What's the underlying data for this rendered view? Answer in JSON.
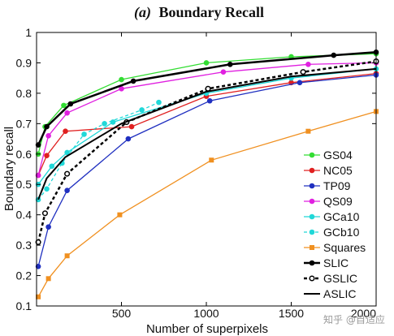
{
  "chart_data": {
    "type": "line",
    "title": "(a) Boundary Recall",
    "title_prefix": "(a)",
    "title_main": "Boundary Recall",
    "xlabel": "Number of superpixels",
    "ylabel": "Boundary recall",
    "xlim": [
      0,
      2000
    ],
    "ylim": [
      0.1,
      1.0
    ],
    "xticks": [
      500,
      1000,
      1500,
      2000
    ],
    "xtick_labels": [
      "500",
      "1000",
      "1500",
      "2000"
    ],
    "yticks": [
      0.1,
      0.2,
      0.3,
      0.4,
      0.5,
      0.6,
      0.7,
      0.8,
      0.9,
      1.0
    ],
    "ytick_labels": [
      "0.1",
      "0.2",
      "0.3",
      "0.4",
      "0.5",
      "0.6",
      "0.7",
      "0.8",
      "0.9",
      "1"
    ],
    "grid": false,
    "legend_position": "bottom-right",
    "series": [
      {
        "name": "GS04",
        "color": "#33dd33",
        "marker": "circle-filled",
        "dash": "solid",
        "x": [
          10,
          50,
          160,
          500,
          1000,
          1500,
          2000
        ],
        "y": [
          0.6,
          0.69,
          0.76,
          0.845,
          0.9,
          0.92,
          0.93
        ]
      },
      {
        "name": "NC05",
        "color": "#e02020",
        "marker": "circle-filled",
        "dash": "solid",
        "x": [
          10,
          60,
          170,
          560,
          1000,
          1500,
          2000
        ],
        "y": [
          0.53,
          0.595,
          0.675,
          0.69,
          0.79,
          0.835,
          0.865
        ]
      },
      {
        "name": "TP09",
        "color": "#2030c0",
        "marker": "circle-filled",
        "dash": "solid",
        "x": [
          10,
          70,
          180,
          540,
          1020,
          1550,
          2000
        ],
        "y": [
          0.23,
          0.36,
          0.48,
          0.65,
          0.775,
          0.835,
          0.86
        ]
      },
      {
        "name": "QS09",
        "color": "#e020e0",
        "marker": "circle-filled",
        "dash": "solid",
        "x": [
          10,
          70,
          180,
          500,
          1100,
          1600,
          2000
        ],
        "y": [
          0.53,
          0.66,
          0.735,
          0.815,
          0.87,
          0.895,
          0.9
        ]
      },
      {
        "name": "GCa10",
        "color": "#20d8d8",
        "marker": "circle-filled",
        "dash": "solid",
        "x": [
          10,
          90,
          180,
          450,
          1000,
          1500,
          2000
        ],
        "y": [
          0.5,
          0.56,
          0.605,
          0.705,
          0.8,
          0.85,
          0.88
        ]
      },
      {
        "name": "GCb10",
        "color": "#20d8d8",
        "marker": "circle-filled",
        "dash": "dashed",
        "x": [
          10,
          60,
          150,
          280,
          400,
          620,
          720
        ],
        "y": [
          0.45,
          0.485,
          0.57,
          0.665,
          0.7,
          0.745,
          0.77
        ]
      },
      {
        "name": "Squares",
        "color": "#f09020",
        "marker": "square-filled",
        "dash": "solid",
        "x": [
          10,
          70,
          180,
          490,
          1030,
          1600,
          2000
        ],
        "y": [
          0.13,
          0.19,
          0.265,
          0.4,
          0.58,
          0.675,
          0.74
        ]
      },
      {
        "name": "SLIC",
        "color": "#000000",
        "marker": "circle-filled",
        "dash": "solid",
        "width": 2.5,
        "x": [
          10,
          60,
          200,
          570,
          1140,
          1750,
          2000
        ],
        "y": [
          0.63,
          0.69,
          0.765,
          0.84,
          0.895,
          0.925,
          0.935
        ]
      },
      {
        "name": "GSLIC",
        "color": "#000000",
        "marker": "circle-open",
        "dash": "dashed",
        "width": 2.5,
        "x": [
          10,
          50,
          180,
          530,
          1010,
          1570,
          2000
        ],
        "y": [
          0.31,
          0.405,
          0.535,
          0.705,
          0.815,
          0.87,
          0.905
        ]
      },
      {
        "name": "ASLIC",
        "color": "#000000",
        "marker": "none",
        "dash": "solid",
        "width": 2,
        "x": [
          10,
          60,
          170,
          500,
          1000,
          1500,
          2000
        ],
        "y": [
          0.45,
          0.52,
          0.59,
          0.7,
          0.805,
          0.855,
          0.88
        ]
      }
    ]
  },
  "watermark": {
    "text": "知乎 @自适应"
  }
}
